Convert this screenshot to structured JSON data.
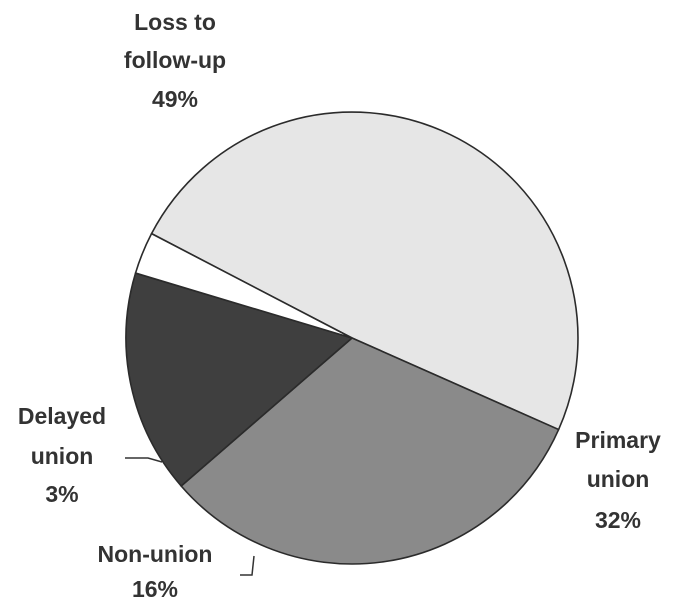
{
  "chart_data": {
    "type": "pie",
    "title": "",
    "legend": "none",
    "slices": [
      {
        "label": "Loss to follow-up",
        "label_lines": [
          "Loss to",
          "follow-up"
        ],
        "value": 49,
        "value_label": "49%",
        "color": "#e6e6e6"
      },
      {
        "label": "Primary union",
        "label_lines": [
          "Primary",
          "union"
        ],
        "value": 32,
        "value_label": "32%",
        "color": "#8a8a8a"
      },
      {
        "label": "Non-union",
        "label_lines": [
          "Non-union"
        ],
        "value": 16,
        "value_label": "16%",
        "color": "#3f3f3f"
      },
      {
        "label": "Delayed union",
        "label_lines": [
          "Delayed",
          "union"
        ],
        "value": 3,
        "value_label": "3%",
        "color": "#ffffff"
      }
    ]
  }
}
